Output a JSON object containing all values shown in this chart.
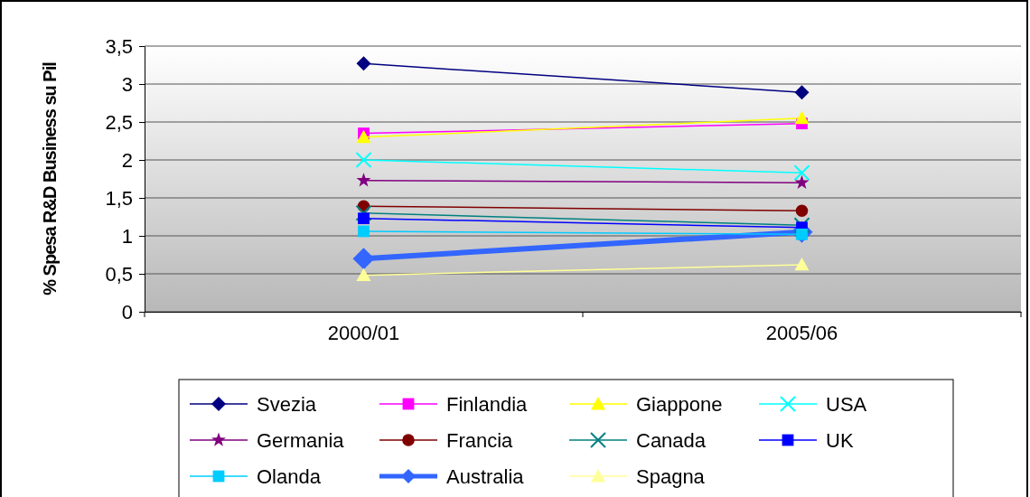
{
  "chart_data": {
    "type": "line",
    "ylabel": "% Spesa R&D Business su Pil",
    "categories": [
      "2000/01",
      "2005/06"
    ],
    "ylim": [
      0,
      3.5
    ],
    "yticks": [
      {
        "value": 0,
        "label": "0"
      },
      {
        "value": 0.5,
        "label": "0,5"
      },
      {
        "value": 1,
        "label": "1"
      },
      {
        "value": 1.5,
        "label": "1,5"
      },
      {
        "value": 2,
        "label": "2"
      },
      {
        "value": 2.5,
        "label": "2,5"
      },
      {
        "value": 3,
        "label": "3"
      },
      {
        "value": 3.5,
        "label": "3,5"
      }
    ],
    "grid": "y",
    "legend": "bottom",
    "series": [
      {
        "name": "Svezia",
        "color": "#000080",
        "marker": "diamond",
        "values": [
          3.27,
          2.89
        ]
      },
      {
        "name": "Finlandia",
        "color": "#ff00ff",
        "marker": "square",
        "values": [
          2.35,
          2.48
        ]
      },
      {
        "name": "Giappone",
        "color": "#ffff00",
        "marker": "triangle",
        "values": [
          2.3,
          2.55
        ]
      },
      {
        "name": "USA",
        "color": "#00ffff",
        "marker": "cross",
        "values": [
          2.0,
          1.83
        ]
      },
      {
        "name": "Germania",
        "color": "#800080",
        "marker": "star",
        "values": [
          1.73,
          1.7
        ]
      },
      {
        "name": "Francia",
        "color": "#800000",
        "marker": "circle",
        "values": [
          1.39,
          1.33
        ]
      },
      {
        "name": "Canada",
        "color": "#008080",
        "marker": "cross",
        "values": [
          1.3,
          1.14
        ]
      },
      {
        "name": "UK",
        "color": "#0000ff",
        "marker": "square",
        "values": [
          1.23,
          1.11
        ]
      },
      {
        "name": "Olanda",
        "color": "#00ccff",
        "marker": "square",
        "values": [
          1.06,
          1.02
        ]
      },
      {
        "name": "Australia",
        "color": "#3366ff",
        "marker": "diamond",
        "values": [
          0.7,
          1.05
        ]
      },
      {
        "name": "Spagna",
        "color": "#ffff99",
        "marker": "triangle",
        "values": [
          0.48,
          0.62
        ]
      }
    ]
  }
}
